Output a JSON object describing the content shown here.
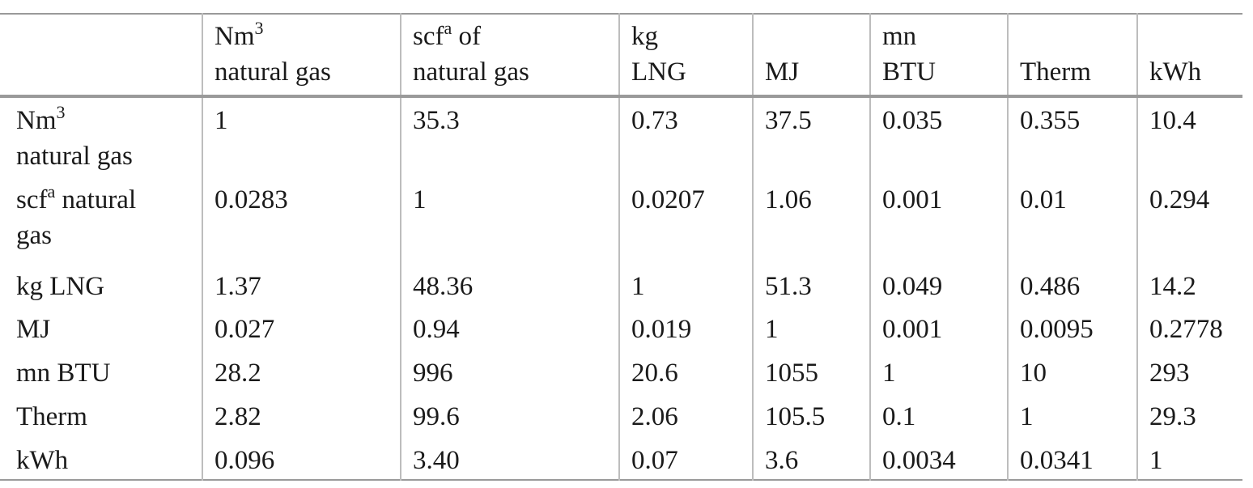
{
  "table": {
    "columns": [
      [
        {
          "text": "Nm",
          "sup": "3"
        },
        {
          "text": "natural gas"
        }
      ],
      [
        {
          "text": "scf",
          "sup": "a",
          "after": " of"
        },
        {
          "text": "natural gas"
        }
      ],
      [
        {
          "text": "kg"
        },
        {
          "text": "LNG"
        }
      ],
      [
        {
          "text": "MJ"
        }
      ],
      [
        {
          "text": "mn"
        },
        {
          "text": "BTU"
        }
      ],
      [
        {
          "text": "Therm"
        }
      ],
      [
        {
          "text": "kWh"
        }
      ]
    ],
    "rows": [
      {
        "label": [
          {
            "text": "Nm",
            "sup": "3"
          },
          {
            "text": "natural gas"
          }
        ],
        "values": [
          "1",
          "35.3",
          "0.73",
          "37.5",
          "0.035",
          "0.355",
          "10.4"
        ]
      },
      {
        "label": [
          {
            "text": "scf",
            "sup": "a",
            "after": " natural"
          },
          {
            "text": "gas"
          }
        ],
        "values": [
          "0.0283",
          "1",
          "0.0207",
          "1.06",
          "0.001",
          "0.01",
          "0.294"
        ]
      },
      {
        "label": [
          {
            "text": "kg LNG"
          }
        ],
        "values": [
          "1.37",
          "48.36",
          "1",
          "51.3",
          "0.049",
          "0.486",
          "14.2"
        ]
      },
      {
        "label": [
          {
            "text": "MJ"
          }
        ],
        "values": [
          "0.027",
          "0.94",
          "0.019",
          "1",
          "0.001",
          "0.0095",
          "0.2778"
        ]
      },
      {
        "label": [
          {
            "text": "mn BTU"
          }
        ],
        "values": [
          "28.2",
          "996",
          "20.6",
          "1055",
          "1",
          "10",
          "293"
        ]
      },
      {
        "label": [
          {
            "text": "Therm"
          }
        ],
        "values": [
          "2.82",
          "99.6",
          "2.06",
          "105.5",
          "0.1",
          "1",
          "29.3"
        ]
      },
      {
        "label": [
          {
            "text": "kWh"
          }
        ],
        "values": [
          "0.096",
          "3.40",
          "0.07",
          "3.6",
          "0.0034",
          "0.0341",
          "1"
        ]
      }
    ]
  }
}
